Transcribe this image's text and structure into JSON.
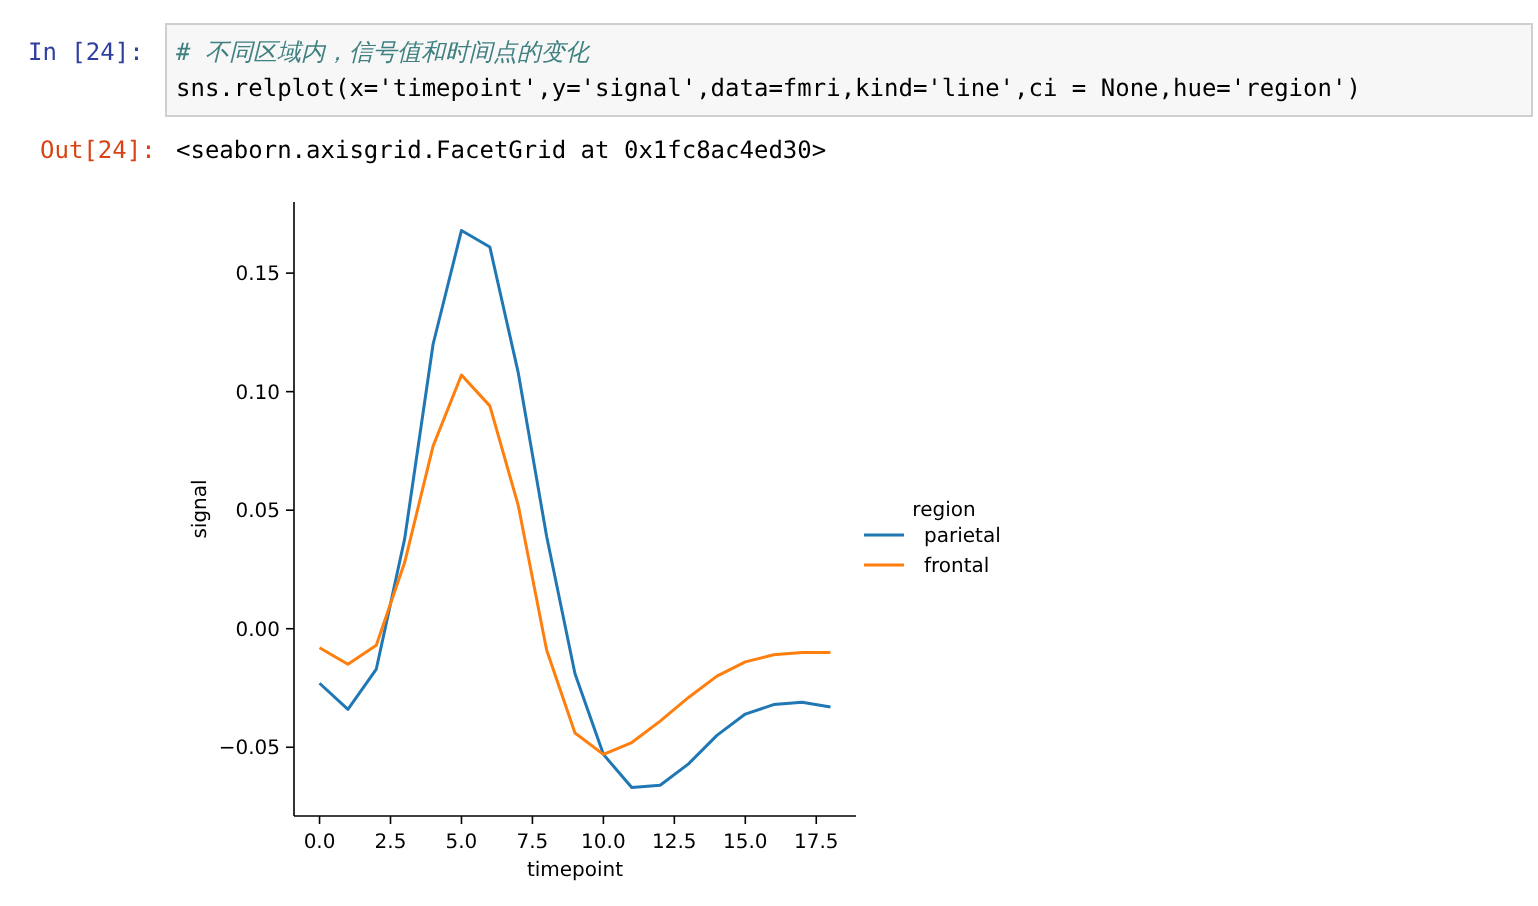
{
  "chart_data": {
    "type": "line",
    "xlabel": "timepoint",
    "ylabel": "signal",
    "legend_title": "region",
    "legend": "right",
    "grid": false,
    "annotations": [
      "In [24]:",
      "# 不同区域内，信号值和时间点的变化",
      "sns.relplot(x='timepoint',y='signal',data=fmri,kind='line',ci = None,hue='region')",
      "Out[24]:",
      "<seaborn.axisgrid.FacetGrid at 0x1fc8ac4ed30>"
    ],
    "x": [
      0,
      1,
      2,
      3,
      4,
      5,
      6,
      7,
      8,
      9,
      10,
      11,
      12,
      13,
      14,
      15,
      16,
      17,
      18
    ],
    "series": [
      {
        "name": "parietal",
        "color": "#1f77b4",
        "values": [
          -0.023,
          -0.034,
          -0.017,
          0.038,
          0.12,
          0.168,
          0.161,
          0.108,
          0.039,
          -0.019,
          -0.053,
          -0.067,
          -0.066,
          -0.057,
          -0.045,
          -0.036,
          -0.032,
          -0.031,
          -0.033
        ]
      },
      {
        "name": "frontal",
        "color": "#ff7f0e",
        "values": [
          -0.008,
          -0.015,
          -0.007,
          0.028,
          0.077,
          0.107,
          0.094,
          0.052,
          -0.009,
          -0.044,
          -0.053,
          -0.048,
          -0.039,
          -0.029,
          -0.02,
          -0.014,
          -0.011,
          -0.01,
          -0.01
        ]
      }
    ],
    "xlim": [
      -0.9,
      18.9
    ],
    "ylim": [
      -0.079,
      0.18
    ],
    "xticks": [
      {
        "value": 0,
        "label": "0.0"
      },
      {
        "value": 2.5,
        "label": "2.5"
      },
      {
        "value": 5,
        "label": "5.0"
      },
      {
        "value": 7.5,
        "label": "7.5"
      },
      {
        "value": 10,
        "label": "10.0"
      },
      {
        "value": 12.5,
        "label": "12.5"
      },
      {
        "value": 15,
        "label": "15.0"
      },
      {
        "value": 17.5,
        "label": "17.5"
      }
    ],
    "yticks": [
      {
        "value": -0.05,
        "label": "−0.05"
      },
      {
        "value": 0,
        "label": "0.00"
      },
      {
        "value": 0.05,
        "label": "0.05"
      },
      {
        "value": 0.1,
        "label": "0.10"
      },
      {
        "value": 0.15,
        "label": "0.15"
      }
    ]
  }
}
